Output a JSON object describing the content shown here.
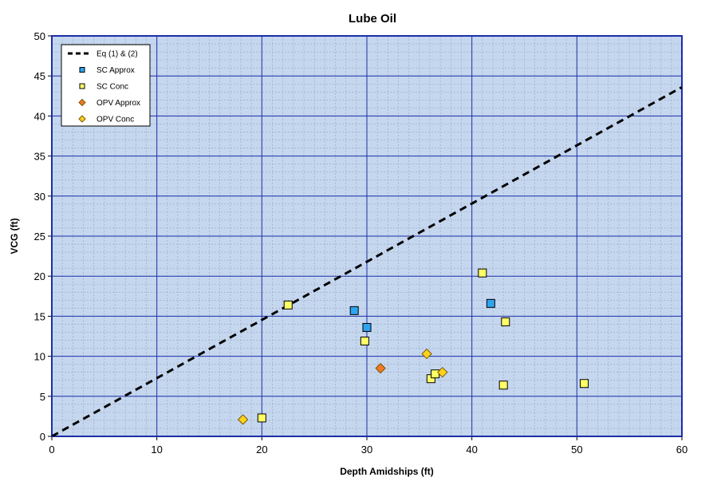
{
  "chart_data": {
    "type": "scatter",
    "title": "Lube Oil",
    "xlabel": "Depth Amidships  (ft)",
    "ylabel": "VCG  (ft)",
    "xlim": [
      0,
      60
    ],
    "ylim": [
      0,
      50
    ],
    "x_major_ticks": [
      0,
      10,
      20,
      30,
      40,
      50,
      60
    ],
    "y_major_ticks": [
      0,
      5,
      10,
      15,
      20,
      25,
      30,
      35,
      40,
      45,
      50
    ],
    "x_minor_step": 1,
    "y_minor_step": 1,
    "grid": true,
    "legend_position": "top-left",
    "colors": {
      "plot_background": "#c5d6ef",
      "major_grid": "#1b2fa6",
      "minor_grid": "#9aa6b8",
      "plot_border": "#1b2fa6"
    },
    "series": [
      {
        "name": "Eq (1) & (2)",
        "kind": "line",
        "style": "dashed",
        "color": "#000000",
        "x": [
          0,
          60
        ],
        "y": [
          0,
          43.6
        ]
      },
      {
        "name": "SC Approx",
        "kind": "marker",
        "marker": "square",
        "color": "#2ea4f0",
        "points": [
          [
            28.8,
            15.7
          ],
          [
            30.0,
            13.6
          ],
          [
            41.8,
            16.6
          ]
        ]
      },
      {
        "name": "SC Conc",
        "kind": "marker",
        "marker": "square",
        "color": "#ffff66",
        "points": [
          [
            22.5,
            16.4
          ],
          [
            20.0,
            2.3
          ],
          [
            29.8,
            11.9
          ],
          [
            36.1,
            7.2
          ],
          [
            36.5,
            7.8
          ],
          [
            41.0,
            20.4
          ],
          [
            43.2,
            14.3
          ],
          [
            43.0,
            6.4
          ],
          [
            50.7,
            6.6
          ]
        ]
      },
      {
        "name": "OPV Approx",
        "kind": "marker",
        "marker": "diamond",
        "color": "#f07828",
        "points": [
          [
            31.3,
            8.5
          ]
        ]
      },
      {
        "name": "OPV Conc",
        "kind": "marker",
        "marker": "diamond",
        "color": "#ffd21e",
        "points": [
          [
            18.2,
            2.1
          ],
          [
            35.7,
            10.3
          ],
          [
            37.2,
            8.0
          ]
        ]
      }
    ]
  }
}
